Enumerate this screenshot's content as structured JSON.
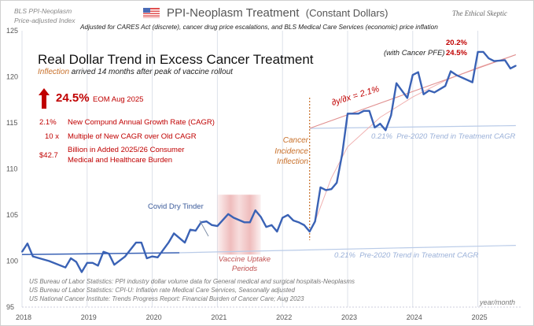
{
  "header": {
    "index_label_line1": "BLS PPI-Neoplasm",
    "index_label_line2": "Price-adjusted Index",
    "title": "PPI-Neoplasm Treatment",
    "title_suffix": "(Constant Dollars)",
    "subtitle": "Adjusted for CARES Act (discrete),  cancer drug price escalations, and BLS Medical Care Services (economic) price inflation",
    "watermark": "The Ethical Skeptic",
    "flag_icon": "us-flag-icon"
  },
  "panel": {
    "headline": "Real Dollar Trend in Excess Cancer Treatment",
    "sub_highlight": "Inflection",
    "sub_rest": " arrived 14 months after peak of vaccine rollout",
    "big_value": "24.5%",
    "big_value_label": "EOM Aug 2025",
    "stats": [
      {
        "value": "2.1%",
        "label": "New Compund Annual Growth Rate (CAGR)"
      },
      {
        "value": "10  x",
        "label": "Multiple of New CAGR over Old CAGR"
      },
      {
        "value": "$42.7",
        "label": "Billion in Added 2025/26 Consumer",
        "label2": "Medical and Healthcare Burden"
      }
    ]
  },
  "sources": [
    "US Bureau of Labor Statistics: PPI industry dollar volume data for General medical and surgical hospitals-Neoplasms",
    "US Bureau of Labor Statistics: CPI-U: Inflation rate Medical Care Services, Seasonally adjusted",
    "US National Cancer Institute: Trends Progress Report: Financial Burden of Cancer Care; Aug 2023"
  ],
  "colors": {
    "series": "#3a62b5",
    "trend_old": "#3a62b5",
    "trend_light": "#b9cbe8",
    "trend_new": "#e08f8f",
    "accent_red": "#c00000",
    "orange": "#c8702a",
    "band": "#e8a0a0"
  },
  "chart_data": {
    "type": "line",
    "title": "PPI-Neoplasm Treatment (Constant Dollars)",
    "xlabel": "year/month",
    "ylabel": "",
    "ylim": [
      95,
      125
    ],
    "yticks": [
      "95",
      "100",
      "105",
      "110",
      "115",
      "120",
      "125"
    ],
    "xticks": [
      "2018",
      "2019",
      "2020",
      "2021",
      "2022",
      "2023",
      "2024",
      "2025"
    ],
    "grid": "vertical",
    "series": [
      {
        "points": [
          [
            "2018-01",
            101.0
          ],
          [
            "2018-02",
            101.9
          ],
          [
            "2018-03",
            100.5
          ],
          [
            "2018-06",
            100.0
          ],
          [
            "2018-09",
            99.3
          ],
          [
            "2018-10",
            100.3
          ],
          [
            "2018-11",
            99.9
          ],
          [
            "2018-12",
            98.8
          ],
          [
            "2019-01",
            99.8
          ],
          [
            "2019-02",
            99.8
          ],
          [
            "2019-03",
            99.5
          ],
          [
            "2019-04",
            101.0
          ],
          [
            "2019-05",
            100.8
          ],
          [
            "2019-06",
            99.6
          ],
          [
            "2019-08",
            100.5
          ],
          [
            "2019-10",
            102.0
          ],
          [
            "2019-11",
            102.0
          ],
          [
            "2019-12",
            100.3
          ],
          [
            "2020-01",
            100.5
          ],
          [
            "2020-02",
            100.4
          ],
          [
            "2020-04",
            102.0
          ],
          [
            "2020-05",
            103.0
          ],
          [
            "2020-07",
            102.0
          ],
          [
            "2020-08",
            103.4
          ],
          [
            "2020-09",
            103.3
          ],
          [
            "2020-10",
            104.2
          ],
          [
            "2020-11",
            104.3
          ],
          [
            "2020-12",
            103.9
          ],
          [
            "2021-01",
            103.8
          ],
          [
            "2021-03",
            105.1
          ],
          [
            "2021-04",
            104.7
          ],
          [
            "2021-06",
            104.2
          ],
          [
            "2021-07",
            104.2
          ],
          [
            "2021-08",
            105.5
          ],
          [
            "2021-09",
            104.8
          ],
          [
            "2021-10",
            103.7
          ],
          [
            "2021-11",
            103.9
          ],
          [
            "2021-12",
            103.2
          ],
          [
            "2022-01",
            104.7
          ],
          [
            "2022-02",
            105.0
          ],
          [
            "2022-03",
            104.4
          ],
          [
            "2022-04",
            104.2
          ],
          [
            "2022-05",
            103.9
          ],
          [
            "2022-06",
            103.2
          ],
          [
            "2022-07",
            104.3
          ],
          [
            "2022-08",
            108.0
          ],
          [
            "2022-09",
            107.7
          ],
          [
            "2022-10",
            107.8
          ],
          [
            "2022-11",
            108.5
          ],
          [
            "2022-12",
            111.6
          ],
          [
            "2023-01",
            116.0
          ],
          [
            "2023-02",
            116.0
          ],
          [
            "2023-03",
            116.0
          ],
          [
            "2023-04",
            116.3
          ],
          [
            "2023-05",
            116.3
          ],
          [
            "2023-06",
            114.5
          ],
          [
            "2023-07",
            114.9
          ],
          [
            "2023-08",
            114.2
          ],
          [
            "2023-09",
            115.8
          ],
          [
            "2023-10",
            119.3
          ],
          [
            "2023-12",
            117.7
          ],
          [
            "2024-01",
            120.2
          ],
          [
            "2024-02",
            120.5
          ],
          [
            "2024-03",
            118.1
          ],
          [
            "2024-04",
            118.5
          ],
          [
            "2024-05",
            118.3
          ],
          [
            "2024-07",
            119.0
          ],
          [
            "2024-08",
            120.6
          ],
          [
            "2024-09",
            120.2
          ],
          [
            "2024-12",
            119.4
          ],
          [
            "2025-01",
            122.7
          ],
          [
            "2025-02",
            122.7
          ],
          [
            "2025-03",
            122.0
          ],
          [
            "2025-04",
            121.7
          ],
          [
            "2025-06",
            121.8
          ],
          [
            "2025-07",
            120.9
          ],
          [
            "2025-08",
            121.2
          ]
        ]
      }
    ],
    "trend_lines": {
      "pre2020_fit": [
        [
          "2018-01",
          100.7
        ],
        [
          "2020-06",
          100.9
        ]
      ],
      "pre2020_extension_low": [
        [
          "2020-06",
          100.9
        ],
        [
          "2025-08",
          101.7
        ]
      ],
      "pre2020_extension_high": [
        [
          "2022-06",
          114.4
        ],
        [
          "2025-08",
          114.7
        ]
      ],
      "new_cagr": [
        [
          "2022-06",
          114.4
        ],
        [
          "2025-08",
          122.4
        ]
      ],
      "fit_curve": [
        [
          "2022-07",
          104.3
        ],
        [
          "2022-10",
          109.0
        ],
        [
          "2023-01",
          112.4
        ],
        [
          "2023-07",
          115.6
        ],
        [
          "2024-01",
          117.8
        ],
        [
          "2024-07",
          119.6
        ],
        [
          "2025-01",
          121.0
        ],
        [
          "2025-06",
          122.0
        ]
      ]
    },
    "inflection_date": "2022-06",
    "vaccine_band": [
      "2021-01",
      "2021-09"
    ],
    "annotations": {
      "inflection": [
        "Cancer",
        "Incidence",
        "Inflection"
      ],
      "slope_label": "∂y/∂x = 2.1%",
      "old_trend_pct": "0.21%",
      "old_trend_label": "Pre-2020 Trend in Treatment CAGR",
      "covid": "Covid Dry Tinder",
      "vaccine": [
        "Vaccine Uptake",
        "Periods"
      ],
      "pfe_label": "(with Cancer PFE)",
      "pct_a": "20.2%",
      "pct_b": "24.5%"
    }
  }
}
